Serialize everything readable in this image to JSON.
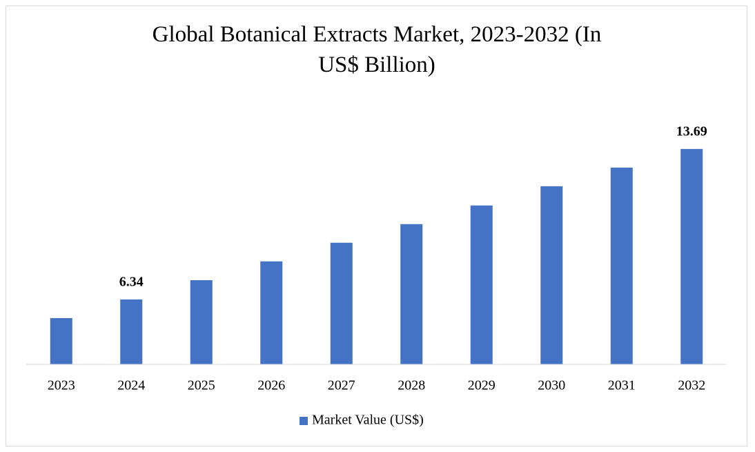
{
  "chart_data": {
    "type": "bar",
    "title": "Global Botanical Extracts Market, 2023-2032 (In US$ Billion)",
    "categories": [
      "2023",
      "2024",
      "2025",
      "2026",
      "2027",
      "2028",
      "2029",
      "2030",
      "2031",
      "2032"
    ],
    "series": [
      {
        "name": "Market Value (US$)",
        "color": "#4472c4",
        "values": [
          5.43,
          6.34,
          7.28,
          8.2,
          9.11,
          10.02,
          10.93,
          11.87,
          12.78,
          13.69
        ],
        "value_labels": [
          null,
          "6.34",
          null,
          null,
          null,
          null,
          null,
          null,
          null,
          "13.69"
        ]
      }
    ],
    "ylim": [
      3.17,
      15
    ]
  }
}
